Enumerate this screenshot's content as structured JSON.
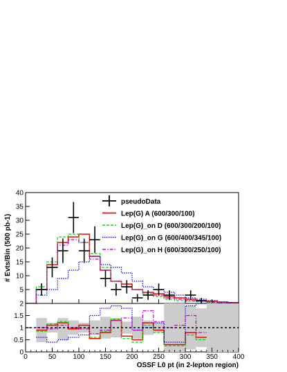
{
  "chart_data": [
    {
      "type": "line",
      "panel": "main",
      "ylabel": "# Evts/Bin (500 pb-1)",
      "xlim": [
        0,
        400
      ],
      "ylim": [
        0,
        40
      ],
      "yticks": [
        5,
        10,
        15,
        20,
        25,
        30,
        35,
        40
      ],
      "bin_edges": [
        0,
        20,
        40,
        60,
        80,
        100,
        120,
        140,
        160,
        180,
        200,
        220,
        240,
        260,
        280,
        300,
        320,
        340,
        360,
        380,
        400
      ],
      "legend_position": "top-right",
      "series": [
        {
          "name": "pseudoData",
          "style": "points",
          "x": [
            30,
            50,
            70,
            90,
            110,
            130,
            150,
            170,
            190,
            210,
            230,
            250,
            270,
            310,
            330
          ],
          "y": [
            5,
            13,
            19,
            31,
            19,
            23,
            9,
            5,
            6,
            2,
            3,
            5,
            3,
            3,
            1
          ],
          "yerr": [
            2.2,
            3.6,
            4.4,
            5.6,
            4.4,
            4.8,
            3,
            2.2,
            2.4,
            1.4,
            1.7,
            2.2,
            1.7,
            1.7,
            1
          ]
        },
        {
          "name": "Lep(G) A (600/300/100)",
          "color": "#ff0000",
          "style": "solid",
          "values": [
            0,
            5,
            14,
            22,
            24,
            25,
            17,
            12,
            8,
            7,
            5,
            4,
            3.5,
            2.5,
            2,
            1.5,
            1,
            0.8,
            0.5,
            0.3
          ]
        },
        {
          "name": "Lep(G)_on D (600/300/200/100)",
          "color": "#00dd00",
          "style": "dashed",
          "values": [
            0,
            6,
            15,
            24,
            25,
            22,
            18,
            13,
            8,
            6,
            5,
            3.5,
            2.5,
            1.5,
            1,
            0.8,
            0.6,
            0.4,
            0.3,
            0.2
          ]
        },
        {
          "name": "Lep(G)_on G (600/400/345/100)",
          "color": "#0000ff",
          "style": "dotted",
          "values": [
            0,
            3,
            5,
            9,
            12,
            15,
            17,
            14,
            13,
            11,
            8,
            6,
            5,
            4,
            3,
            2,
            1.5,
            1,
            0.5,
            0.3
          ]
        },
        {
          "name": "Lep(G)_on H (600/300/250/100)",
          "color": "#cc00cc",
          "style": "dashdot",
          "values": [
            0,
            5,
            13,
            21,
            23,
            22,
            16,
            12,
            8,
            6,
            5,
            4,
            3,
            2,
            1.5,
            1,
            0.8,
            0.5,
            0.3,
            0.2
          ]
        }
      ]
    },
    {
      "type": "line",
      "panel": "ratio",
      "xlabel": "OSSF L0 pt (in 2-lepton region)",
      "xlim": [
        0,
        400
      ],
      "ylim": [
        0,
        2
      ],
      "yticks": [
        "0",
        "0.5",
        "1",
        "1.5",
        "2"
      ],
      "xticks": [
        "0",
        "50",
        "100",
        "150",
        "200",
        "250",
        "300",
        "350",
        "400"
      ],
      "reference_line": 1,
      "band_lower": [
        2,
        0.4,
        0.8,
        0.5,
        0.7,
        0.8,
        0.7,
        0.55,
        0.6,
        0.75,
        0.55,
        0.7,
        0.8,
        0,
        0,
        0.1,
        0.2,
        0,
        0,
        0
      ],
      "band_upper": [
        2,
        1.4,
        1.2,
        1.4,
        1.3,
        1.2,
        1.3,
        1.45,
        1.4,
        1.25,
        1.45,
        1.3,
        1.2,
        2,
        2,
        1.9,
        1.8,
        2,
        2,
        2
      ],
      "series": [
        {
          "name": "Lep(G) A (600/300/100)",
          "color": "#ff0000",
          "style": "solid",
          "values": [
            null,
            0.9,
            1.1,
            1.2,
            0.95,
            1.1,
            0.55,
            0.8,
            1.3,
            0.65,
            0.5,
            1.2,
            0.9,
            0.3,
            0.3,
            0.8,
            0.6,
            null,
            null,
            null
          ]
        },
        {
          "name": "Lep(G)_on D (600/300/200/100)",
          "color": "#00dd00",
          "style": "dashed",
          "values": [
            null,
            0.85,
            1.15,
            1.25,
            1.0,
            1.0,
            0.6,
            0.85,
            1.35,
            0.55,
            0.4,
            1.1,
            0.8,
            0.25,
            0.25,
            0.7,
            0.5,
            null,
            null,
            null
          ]
        },
        {
          "name": "Lep(G)_on G (600/400/345/100)",
          "color": "#0000ff",
          "style": "dotted",
          "values": [
            null,
            0.6,
            0.4,
            0.5,
            0.6,
            0.7,
            1.5,
            1.8,
            1.9,
            1.8,
            0.9,
            1.0,
            1.2,
            0.4,
            0.4,
            1.9,
            2.0,
            null,
            null,
            null
          ]
        },
        {
          "name": "Lep(G)_on H (600/300/250/100)",
          "color": "#cc00cc",
          "style": "dashdot",
          "values": [
            null,
            1.0,
            0.95,
            1.1,
            1.0,
            0.95,
            0.75,
            0.9,
            1.3,
            1.4,
            0.9,
            1.7,
            1.25,
            1.0,
            1.1,
            1.5,
            0.8,
            null,
            null,
            null
          ]
        }
      ]
    }
  ]
}
